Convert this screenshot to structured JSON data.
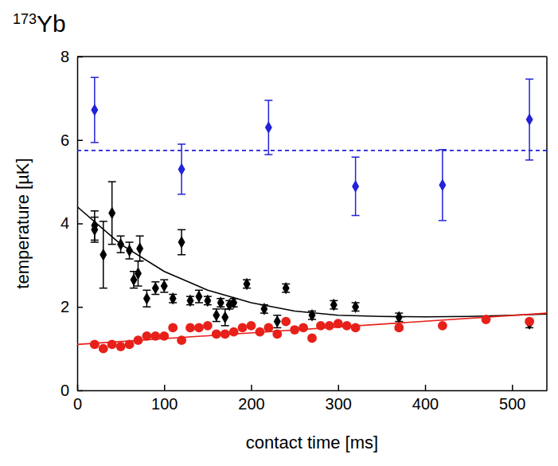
{
  "chart_data": {
    "type": "scatter",
    "title": "173Yb",
    "x_label": "contact time [ms]",
    "y_label": "temperature [µK]",
    "xlim": [
      0,
      540
    ],
    "ylim": [
      0,
      8
    ],
    "xticks": [
      0,
      100,
      200,
      300,
      400,
      500
    ],
    "yticks": [
      0,
      2,
      4,
      6,
      8
    ],
    "grid": false,
    "series": [
      {
        "type": "scatter",
        "color": "#2222d8",
        "marker": "diamond",
        "x": [
          20,
          120,
          220,
          320,
          420,
          520
        ],
        "values": [
          6.72,
          5.3,
          6.3,
          4.89,
          4.92,
          6.49
        ],
        "errors": [
          0.78,
          0.6,
          0.65,
          0.7,
          0.85,
          0.97
        ]
      },
      {
        "type": "line",
        "color": "#2222d8",
        "line_style": "dashed",
        "x": [
          0,
          540
        ],
        "values": [
          5.75,
          5.75
        ]
      },
      {
        "type": "scatter",
        "color": "#000000",
        "marker": "diamond",
        "x": [
          20,
          20,
          30,
          40,
          50,
          60,
          65,
          70,
          72,
          80,
          90,
          100,
          110,
          120,
          130,
          140,
          150,
          160,
          165,
          170,
          175,
          180,
          195,
          215,
          230,
          240,
          270,
          295,
          320,
          370,
          520
        ],
        "values": [
          3.95,
          3.85,
          3.25,
          4.25,
          3.5,
          3.35,
          2.65,
          2.8,
          3.4,
          2.2,
          2.45,
          2.5,
          2.2,
          3.55,
          2.15,
          2.25,
          2.15,
          1.8,
          2.1,
          1.75,
          2.05,
          2.1,
          2.55,
          1.95,
          1.65,
          2.45,
          1.8,
          2.05,
          2.0,
          1.75,
          1.6
        ],
        "errors": [
          0.35,
          0.3,
          0.8,
          0.75,
          0.2,
          0.2,
          0.2,
          0.3,
          0.3,
          0.2,
          0.15,
          0.15,
          0.1,
          0.3,
          0.1,
          0.15,
          0.1,
          0.15,
          0.1,
          0.2,
          0.1,
          0.1,
          0.1,
          0.1,
          0.15,
          0.1,
          0.1,
          0.1,
          0.1,
          0.1,
          0.1
        ]
      },
      {
        "type": "line",
        "color": "#000000",
        "line_style": "solid",
        "x": [
          0,
          50,
          100,
          150,
          200,
          250,
          300,
          350,
          400,
          450,
          500,
          540
        ],
        "values": [
          4.4,
          3.5,
          2.85,
          2.4,
          2.1,
          1.9,
          1.8,
          1.77,
          1.76,
          1.77,
          1.8,
          1.83
        ]
      },
      {
        "type": "scatter",
        "color": "#e8201a",
        "marker": "circle",
        "x": [
          20,
          30,
          40,
          50,
          60,
          70,
          80,
          90,
          100,
          110,
          120,
          130,
          140,
          150,
          160,
          170,
          180,
          190,
          200,
          210,
          220,
          230,
          240,
          250,
          260,
          270,
          280,
          290,
          300,
          310,
          320,
          370,
          420,
          470,
          520
        ],
        "values": [
          1.1,
          1.0,
          1.1,
          1.05,
          1.1,
          1.2,
          1.3,
          1.3,
          1.3,
          1.5,
          1.2,
          1.5,
          1.5,
          1.55,
          1.35,
          1.35,
          1.4,
          1.5,
          1.55,
          1.4,
          1.5,
          1.35,
          1.65,
          1.45,
          1.5,
          1.25,
          1.55,
          1.55,
          1.6,
          1.55,
          1.5,
          1.5,
          1.55,
          1.7,
          1.65
        ]
      },
      {
        "type": "line",
        "color": "#e8201a",
        "line_style": "solid",
        "x": [
          0,
          540
        ],
        "values": [
          1.1,
          1.85
        ]
      }
    ]
  }
}
